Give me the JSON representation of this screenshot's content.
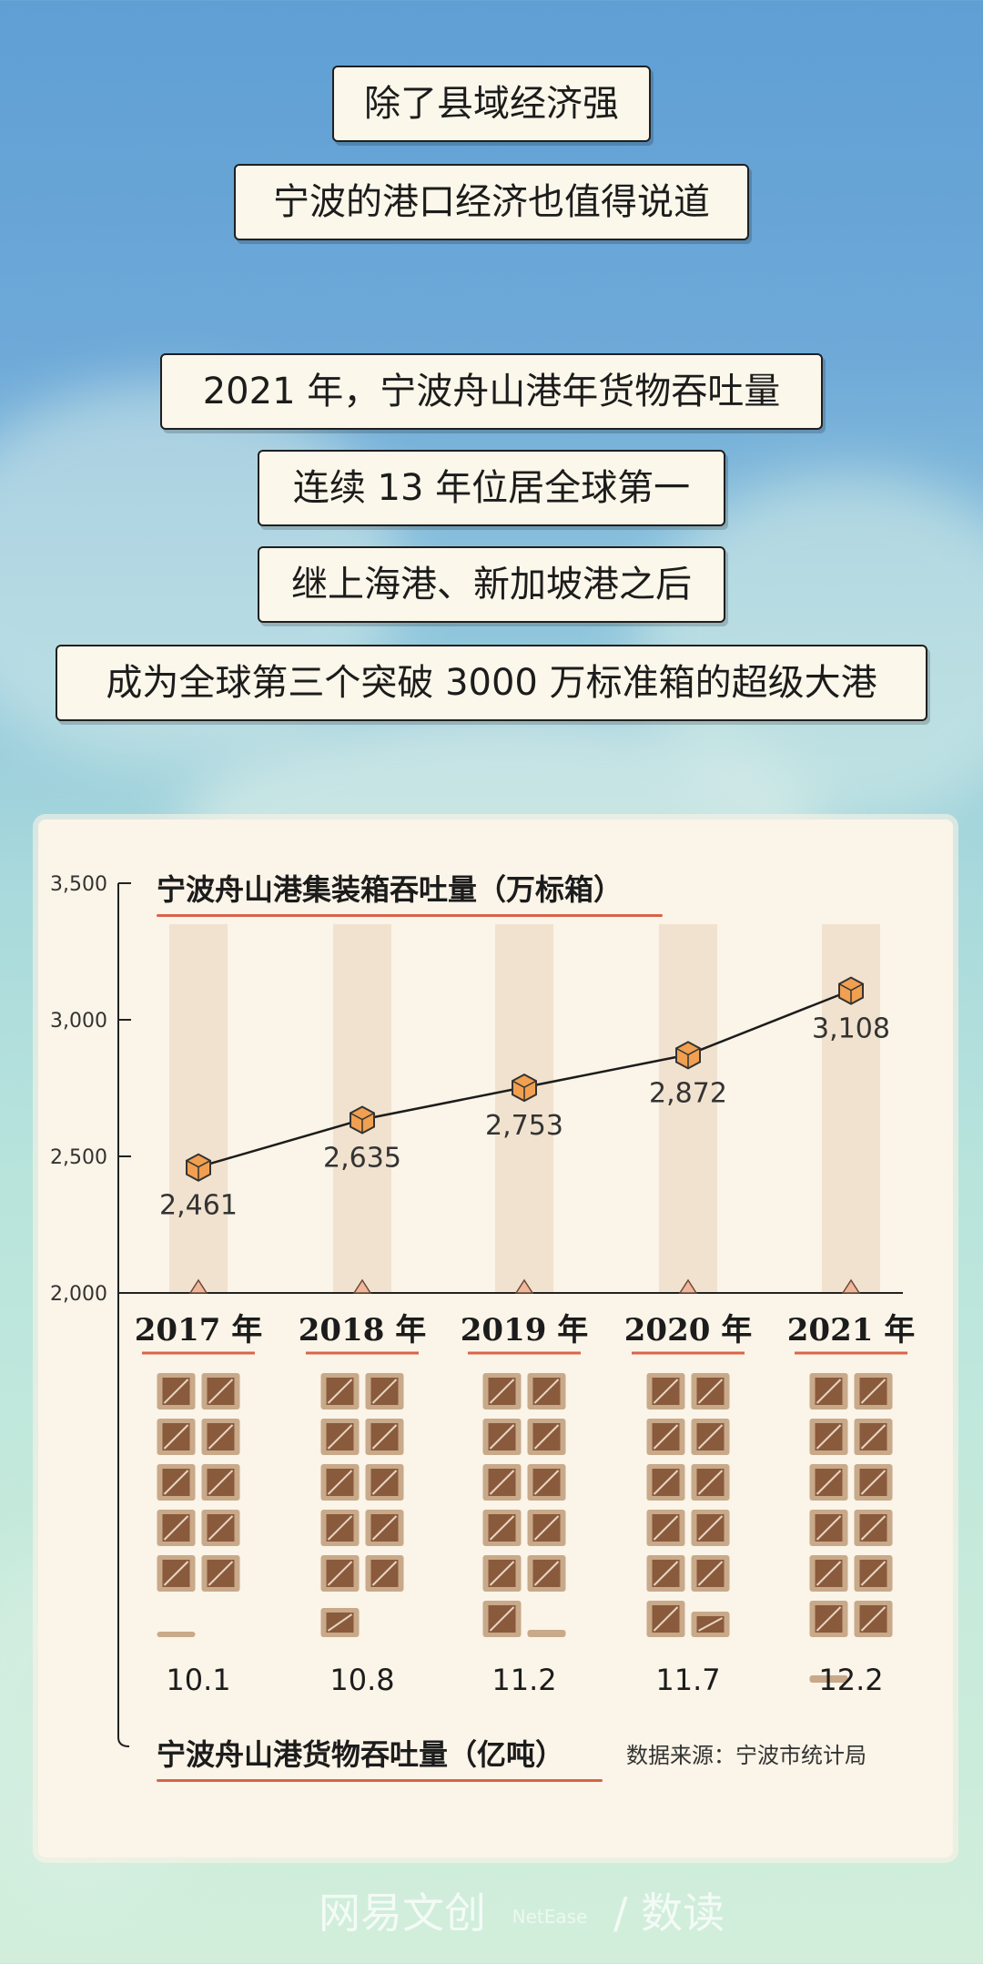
{
  "captions": [
    "除了县域经济强",
    "宁波的港口经济也值得说道",
    "2021 年，宁波舟山港年货物吞吐量",
    "连续 13 年位居全球第一",
    "继上海港、新加坡港之后",
    "成为全球第三个突破 3000 万标准箱的超级大港"
  ],
  "chart_data": [
    {
      "type": "line",
      "title": "宁波舟山港集装箱吞吐量（万标箱）",
      "categories": [
        "2017 年",
        "2018 年",
        "2019 年",
        "2020 年",
        "2021 年"
      ],
      "values": [
        2461,
        2635,
        2753,
        2872,
        3108
      ],
      "value_labels": [
        "2,461",
        "2,635",
        "2,753",
        "2,872",
        "3,108"
      ],
      "ylim": [
        2000,
        3500
      ],
      "yticks": [
        "2,000",
        "2,500",
        "3,000",
        "3,500"
      ],
      "ytick_values": [
        2000,
        2500,
        3000,
        3500
      ],
      "colors": {
        "marker": "#f0a050",
        "line": "#1c1c1c",
        "column": "#f1e2cf"
      }
    },
    {
      "type": "bar",
      "title": "宁波舟山港货物吞吐量（亿吨）",
      "categories": [
        "2017 年",
        "2018 年",
        "2019 年",
        "2020 年",
        "2021 年"
      ],
      "values": [
        10.1,
        10.8,
        11.2,
        11.7,
        12.2
      ],
      "value_labels": [
        "10.1",
        "10.8",
        "11.2",
        "11.7",
        "12.2"
      ],
      "unit_per_box": 1,
      "colors": {
        "box": "#8a5a3c",
        "box_border": "#c8a98a"
      }
    }
  ],
  "source": "数据来源：宁波市统计局",
  "watermark": {
    "main": "网易文创",
    "small": "NetEase",
    "sub": "数读"
  }
}
